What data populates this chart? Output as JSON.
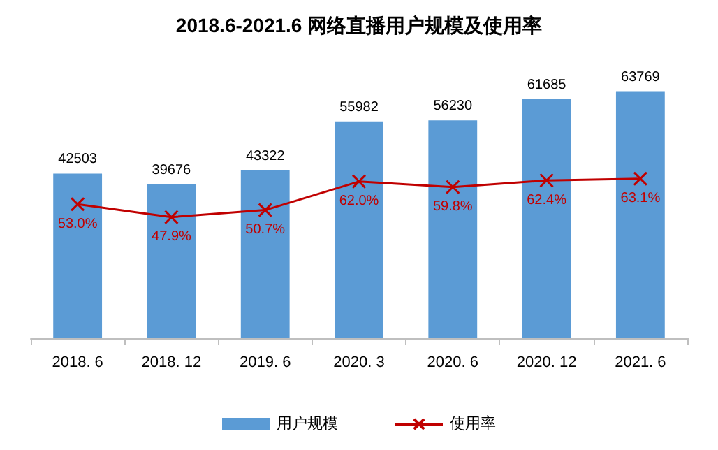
{
  "chart_data": {
    "type": "bar",
    "title": "2018.6-2021.6 网络直播用户规模及使用率",
    "categories": [
      "2018. 6",
      "2018. 12",
      "2019. 6",
      "2020. 3",
      "2020. 6",
      "2020. 12",
      "2021. 6"
    ],
    "series": [
      {
        "name": "用户规模",
        "color": "#5b9bd5",
        "values": [
          42503,
          39676,
          43322,
          55982,
          56230,
          61685,
          63769
        ],
        "value_labels": [
          "42503",
          "39676",
          "43322",
          "55982",
          "56230",
          "61685",
          "63769"
        ]
      },
      {
        "name": "使用率",
        "type": "line",
        "axis": "y2",
        "color": "#c00000",
        "marker": "cross",
        "values": [
          53.0,
          47.9,
          50.7,
          62.0,
          59.8,
          62.4,
          63.1
        ],
        "value_labels": [
          "53.0%",
          "47.9%",
          "50.7%",
          "62.0%",
          "59.8%",
          "62.4%",
          "63.1%"
        ]
      }
    ],
    "tick_labels": "x",
    "grid": false,
    "legend": "bottom"
  }
}
